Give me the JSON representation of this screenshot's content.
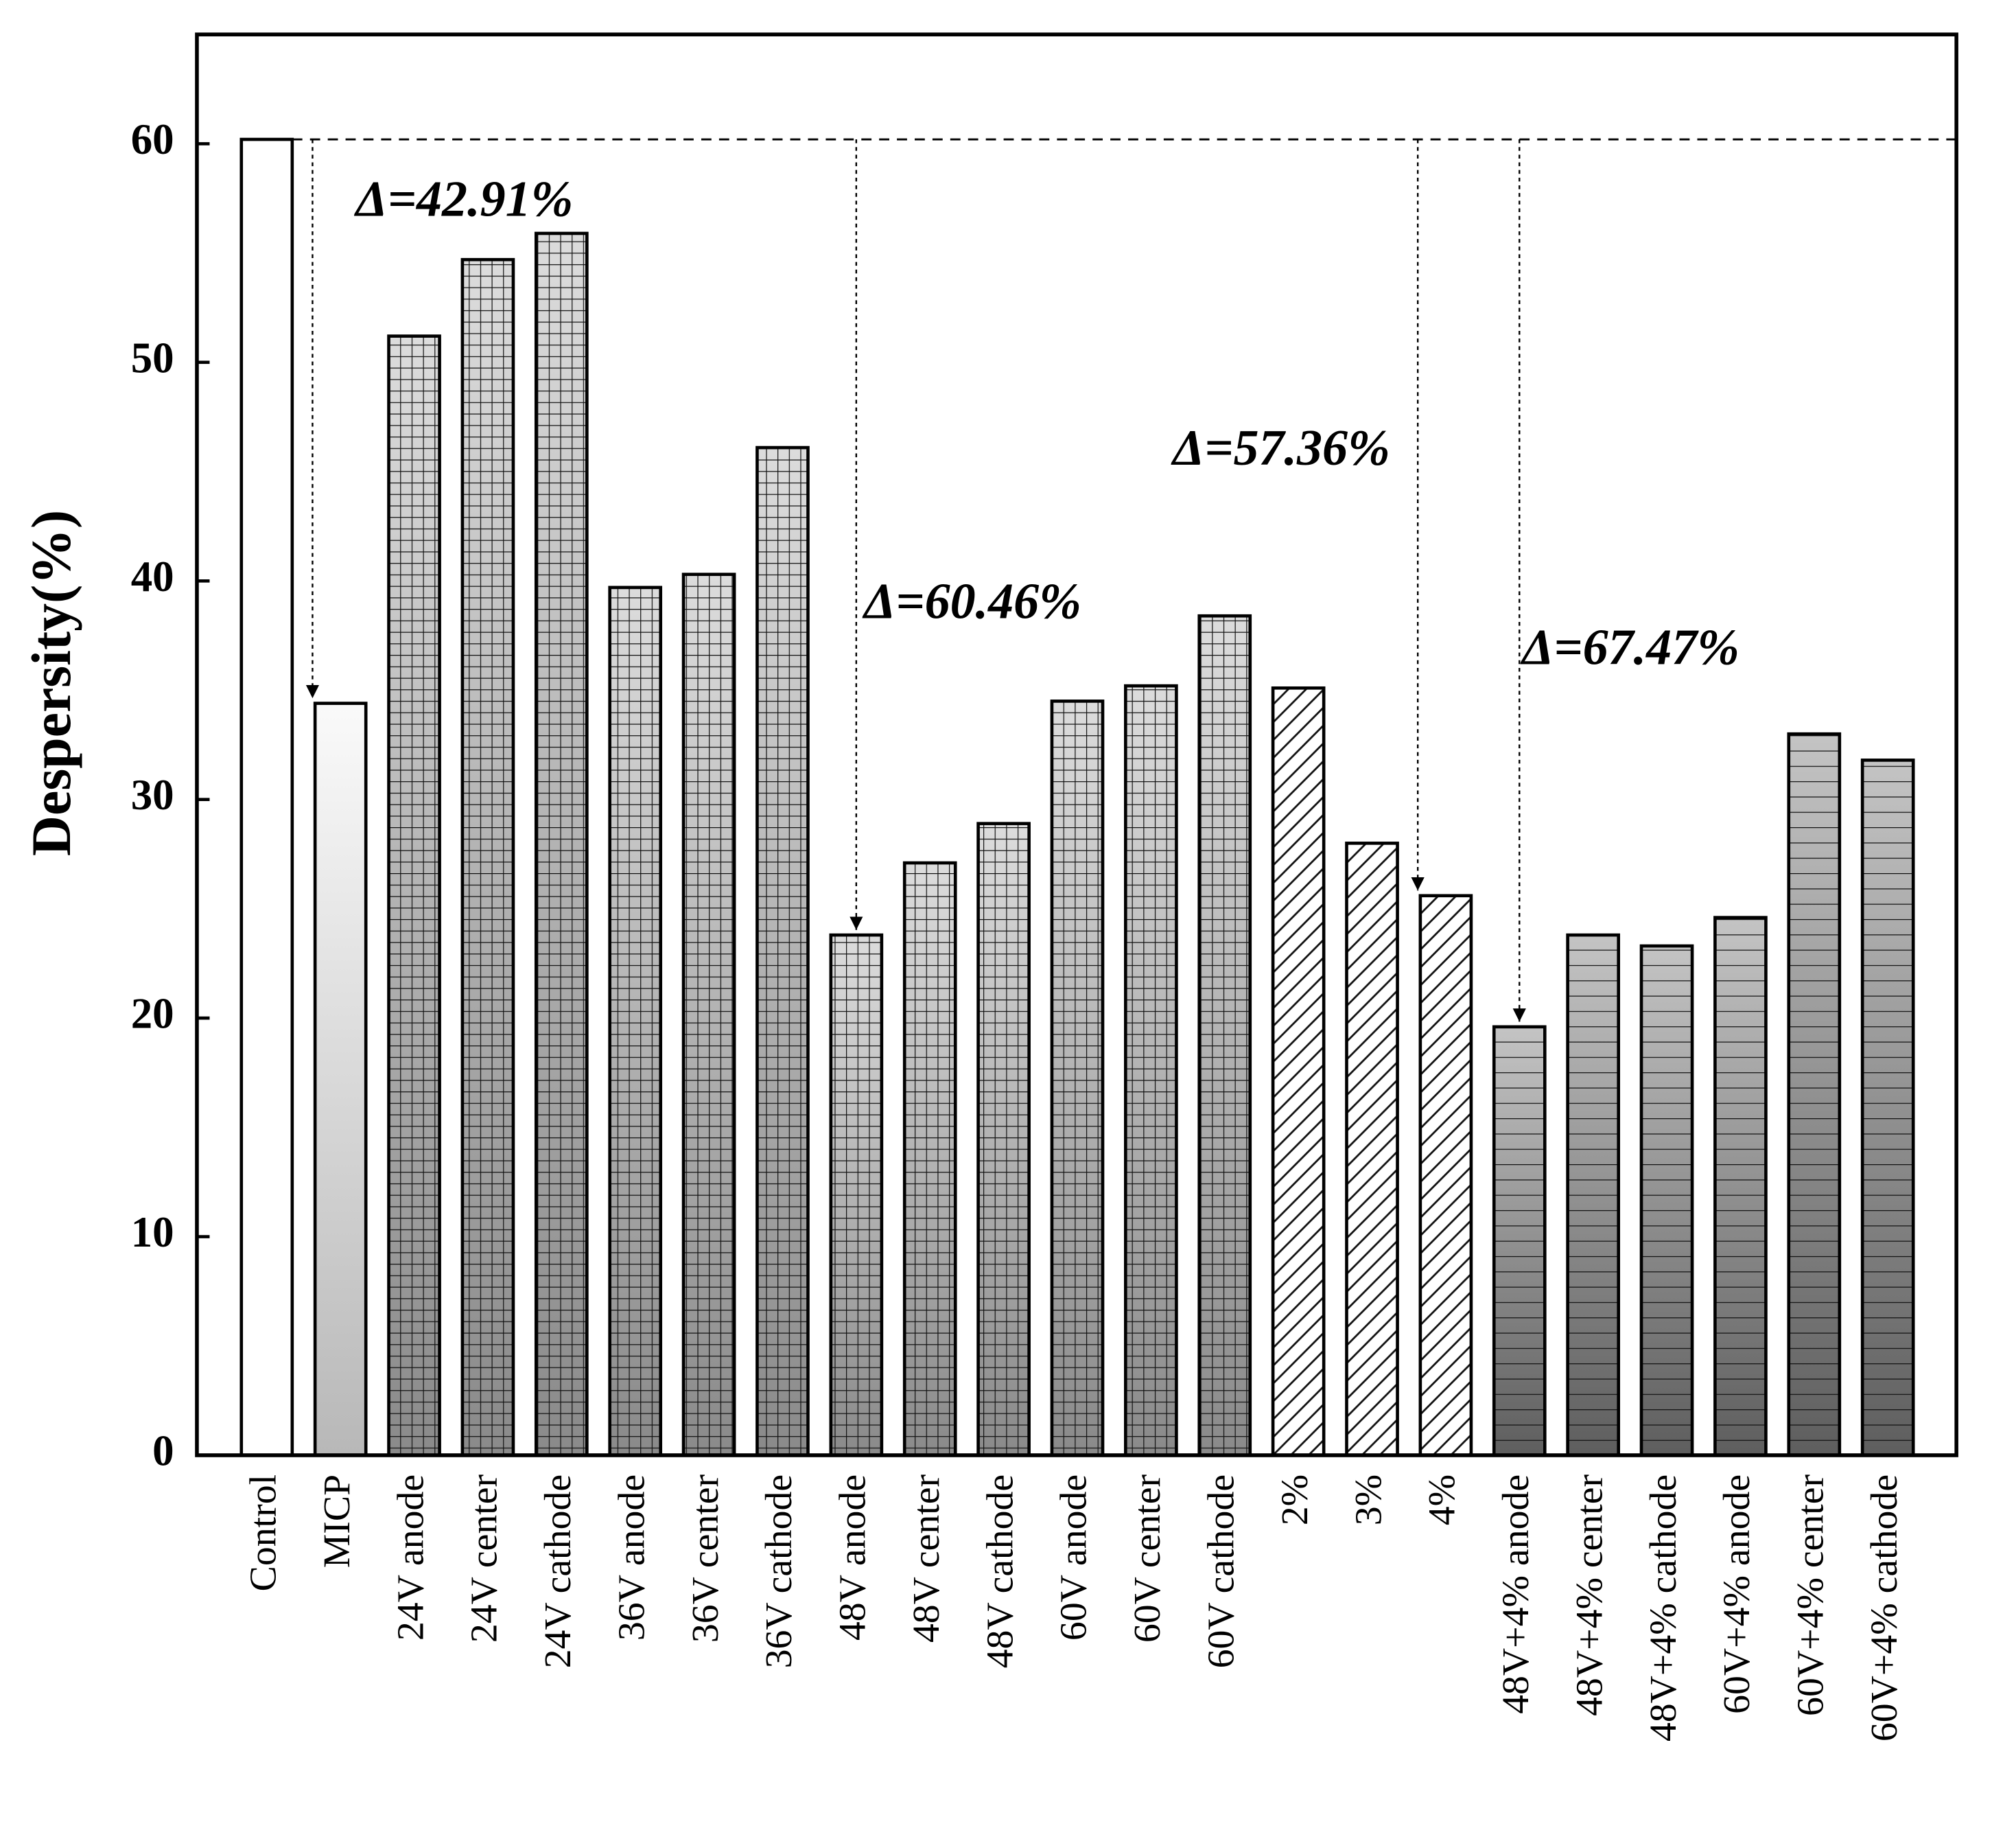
{
  "chart_data": {
    "type": "bar",
    "y_label": "Despersity(%)",
    "categories": [
      "Control",
      "MICP",
      "24V anode",
      "24V center",
      "24V cathode",
      "36V anode",
      "36V center",
      "36V cathode",
      "48V anode",
      "48V center",
      "48V cathode",
      "60V anode",
      "60V center",
      "60V cathode",
      "2%",
      "3%",
      "4%",
      "48V+4% anode",
      "48V+4% center",
      "48V+4% cathode",
      "60V+4% anode",
      "60V+4% center",
      "60V+4% cathode"
    ],
    "values": [
      60.2,
      34.4,
      51.2,
      54.7,
      55.9,
      39.7,
      40.3,
      46.1,
      23.8,
      27.1,
      28.9,
      34.5,
      35.2,
      38.4,
      35.1,
      28.0,
      25.6,
      19.6,
      23.8,
      23.3,
      24.6,
      33.0,
      31.8
    ],
    "fills": [
      "white",
      "gradient",
      "grid",
      "grid",
      "grid",
      "grid",
      "grid",
      "grid",
      "grid",
      "grid",
      "grid",
      "grid",
      "grid",
      "grid",
      "hatch",
      "hatch",
      "hatch",
      "lines",
      "lines",
      "lines",
      "lines",
      "lines",
      "lines"
    ],
    "ylim": [
      0,
      65
    ],
    "yticks": [
      0,
      10,
      20,
      30,
      40,
      50,
      60
    ],
    "annotations": [
      {
        "text": "Δ=42.91%",
        "target": 1
      },
      {
        "text": "Δ=60.46%",
        "target": 8
      },
      {
        "text": "Δ=57.36%",
        "target": 16
      },
      {
        "text": "Δ=67.47%",
        "target": 17
      }
    ]
  }
}
